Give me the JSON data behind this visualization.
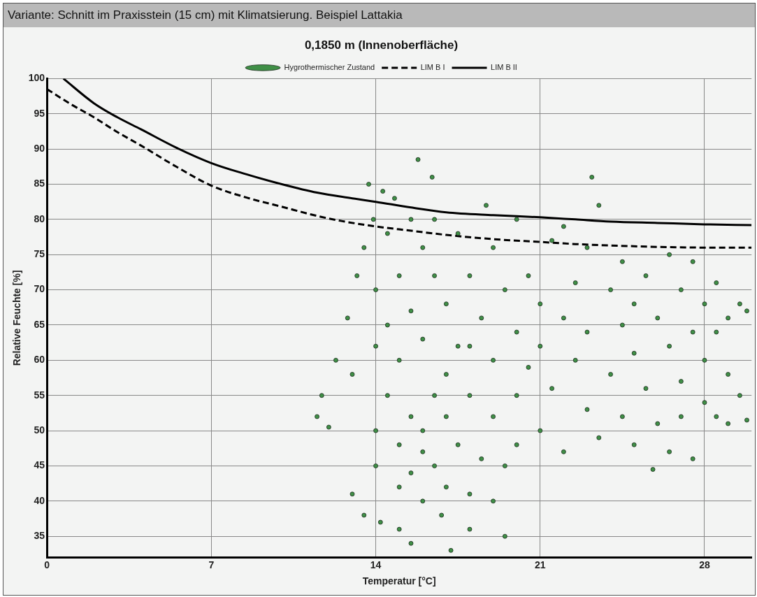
{
  "chart_data": {
    "type": "scatter",
    "title": "0,1850 m (Innenoberfläche)",
    "xlabel": "Temperatur [°C]",
    "ylabel": "Relative Feuchte [%]",
    "annotations": [
      "Variante: Schnitt im Praxisstein (15 cm) mit Klimatsierung. Beispiel Lattakia"
    ],
    "xlim": [
      0,
      30
    ],
    "ylim": [
      32,
      100
    ],
    "xticks": [
      0,
      7,
      14,
      21,
      28
    ],
    "yticks": [
      35,
      40,
      45,
      50,
      55,
      60,
      65,
      70,
      75,
      80,
      85,
      90,
      95,
      100
    ],
    "grid": true,
    "legend": "top",
    "series": [
      {
        "name": "Hygrothermischer Zustand",
        "marker": "circle",
        "color": "#3f8f46",
        "x": [
          11.5,
          11.7,
          12,
          12.3,
          12.8,
          13,
          13.2,
          13.5,
          13.7,
          13.9,
          13,
          13.5,
          14.2,
          15,
          15.5,
          14.8,
          15.8,
          16.4,
          16.5,
          14,
          14,
          14,
          14,
          14.5,
          14.5,
          14.5,
          15,
          15,
          15,
          15,
          15.5,
          15.5,
          15.5,
          15.5,
          16,
          16,
          16,
          16,
          16.5,
          16.5,
          16.8,
          17,
          17,
          17,
          17.2,
          17.5,
          17.5,
          17.5,
          18,
          18,
          18,
          18,
          18.5,
          18.5,
          19,
          19,
          19,
          19,
          19.5,
          19.5,
          20,
          20,
          20,
          20.5,
          20.5,
          21,
          21,
          21,
          21.5,
          21.5,
          22,
          22,
          22.5,
          22.5,
          23,
          23,
          23,
          23.2,
          23.5,
          23.5,
          24,
          24,
          24.5,
          24.5,
          24.5,
          25,
          25,
          25,
          25.5,
          25.5,
          25.8,
          26,
          26,
          26.5,
          26.5,
          26.5,
          27,
          27,
          27,
          27.5,
          27.5,
          27.5,
          28,
          28,
          28,
          28.5,
          28.5,
          28.5,
          29,
          29,
          29,
          29.5,
          29.5,
          29.8,
          29.8,
          19.5,
          18.7,
          20,
          22,
          14.3,
          16,
          17,
          18,
          16.5
        ],
        "values": [
          52,
          55,
          50.5,
          60,
          66,
          58,
          72,
          76,
          85,
          80,
          41,
          38,
          37,
          36,
          34,
          83,
          88.5,
          86,
          55,
          70,
          62,
          50,
          45,
          78,
          65,
          55,
          72,
          60,
          48,
          42,
          80,
          67,
          52,
          44,
          76,
          63,
          50,
          40,
          72,
          45,
          38,
          68,
          58,
          42,
          33,
          78,
          62,
          48,
          72,
          55,
          41,
          36,
          66,
          46,
          76,
          60,
          52,
          40,
          70,
          45,
          64,
          55,
          48,
          72,
          59,
          68,
          62,
          50,
          77,
          56,
          66,
          47,
          71,
          60,
          76,
          64,
          53,
          86,
          82,
          49,
          70,
          58,
          74,
          65,
          52,
          68,
          61,
          48,
          72,
          56,
          44.5,
          66,
          51,
          75,
          62,
          47,
          70,
          57,
          52,
          74,
          64,
          46,
          68,
          60,
          54,
          71,
          64,
          52,
          66,
          58,
          51,
          68,
          55,
          67,
          51.5,
          35,
          82,
          80,
          79,
          84,
          47,
          52,
          62,
          80
        ]
      },
      {
        "name": "LIM B I",
        "type": "line",
        "line_style": "dashed",
        "color": "#000000",
        "x": [
          0,
          1,
          2,
          3,
          4,
          5.5,
          7,
          8.5,
          10,
          11.5,
          12.5,
          14,
          15.5,
          17,
          19,
          21,
          22.5,
          24,
          26,
          28,
          30
        ],
        "values": [
          98.5,
          96.4,
          94.5,
          92.4,
          90.5,
          87.5,
          84.8,
          83.1,
          81.8,
          80.5,
          79.8,
          79,
          78.4,
          77.8,
          77.2,
          76.8,
          76.5,
          76.3,
          76.1,
          76,
          76
        ]
      },
      {
        "name": "LIM B II",
        "type": "line",
        "line_style": "solid",
        "color": "#000000",
        "x": [
          0.7,
          2,
          3,
          4,
          5.5,
          7,
          8.5,
          10,
          11.5,
          13,
          14,
          15.5,
          17,
          19,
          21,
          22.5,
          24,
          26,
          28,
          30
        ],
        "values": [
          100,
          96.5,
          94.5,
          92.8,
          90.2,
          88,
          86.4,
          85,
          83.8,
          83,
          82.5,
          81.7,
          81,
          80.6,
          80.3,
          80,
          79.7,
          79.5,
          79.3,
          79.2
        ]
      }
    ]
  }
}
